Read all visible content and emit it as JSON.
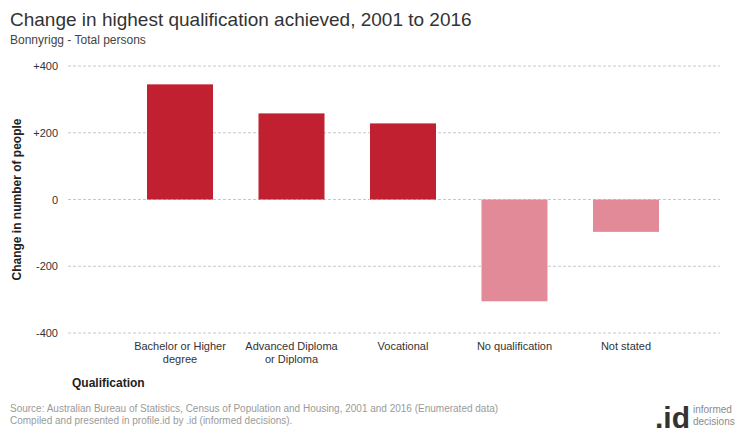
{
  "chart_data": {
    "type": "bar",
    "title": "Change in highest qualification achieved, 2001 to 2016",
    "subtitle": "Bonnyrigg - Total persons",
    "x_label": "Qualification",
    "y_label": "Change in number of people",
    "categories": [
      "Bachelor or Higher degree",
      "Advanced Diploma or Diploma",
      "Vocational",
      "No qualification",
      "Not stated"
    ],
    "values": [
      345,
      258,
      228,
      -305,
      -97
    ],
    "colors": [
      "#c0202f",
      "#c0202f",
      "#c0202f",
      "#e38a98",
      "#e38a98"
    ],
    "ylim": [
      -400,
      400
    ],
    "yticks": [
      -400,
      -200,
      0,
      {
        "value": 200,
        "label": "+200"
      },
      {
        "value": 400,
        "label": "+400"
      }
    ],
    "grid": true,
    "source": [
      "Source: Australian Bureau of Statistics, Census of Population and Housing, 2001 and 2016 (Enumerated data)",
      "Compiled and presented in profile.id by .id (informed decisions)."
    ],
    "logo": {
      "mark": ".id",
      "text": [
        "informed",
        "decisions"
      ]
    }
  }
}
